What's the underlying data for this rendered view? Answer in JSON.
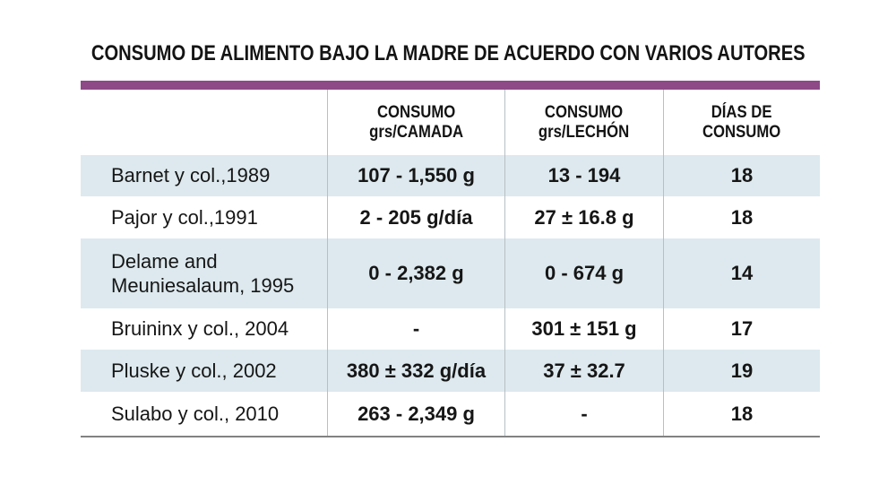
{
  "title": "CONSUMO DE ALIMENTO BAJO LA MADRE DE ACUERDO CON VARIOS AUTORES",
  "colors": {
    "accent_bar": "#8d4a87",
    "row_highlight": "#dde9ee",
    "divider": "#b6c0c4",
    "bottom_rule": "#828282",
    "text": "#161616"
  },
  "chart_data": {
    "type": "table",
    "title": "CONSUMO DE ALIMENTO BAJO LA MADRE DE ACUERDO CON VARIOS AUTORES",
    "columns": {
      "author": "",
      "camada": "CONSUMO\ngrs/CAMADA",
      "lechon": "CONSUMO\ngrs/LECHÓN",
      "dias": "DÍAS DE\nCONSUMO"
    },
    "rows": [
      {
        "author": "Barnet y col.,1989",
        "camada": "107 - 1,550 g",
        "lechon": "13 - 194",
        "dias": "18"
      },
      {
        "author": "Pajor y col.,1991",
        "camada": "2 - 205 g/día",
        "lechon": "27 ± 16.8 g",
        "dias": "18"
      },
      {
        "author": "Delame and\nMeuniesalaum, 1995",
        "camada": "0 - 2,382 g",
        "lechon": "0 - 674 g",
        "dias": "14"
      },
      {
        "author": "Bruininx y col., 2004",
        "camada": "-",
        "lechon": "301 ± 151 g",
        "dias": "17"
      },
      {
        "author": "Pluske y col., 2002",
        "camada": "380 ± 332 g/día",
        "lechon": "37 ± 32.7",
        "dias": "19"
      },
      {
        "author": "Sulabo y col., 2010",
        "camada": "263 - 2,349 g",
        "lechon": "-",
        "dias": "18"
      }
    ]
  }
}
